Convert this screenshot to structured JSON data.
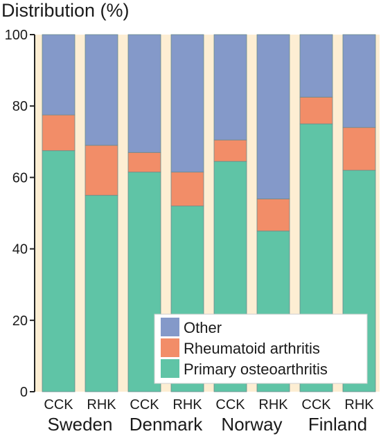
{
  "chart_data": {
    "type": "bar",
    "stacked": true,
    "title": "",
    "ylabel": "Distribution (%)",
    "ylim": [
      0,
      100
    ],
    "yticks": [
      0,
      20,
      40,
      60,
      80,
      100
    ],
    "grid": false,
    "legend_position": "bottom-right",
    "categories": [
      "CCK",
      "RHK",
      "CCK",
      "RHK",
      "CCK",
      "RHK",
      "CCK",
      "RHK"
    ],
    "groups": [
      {
        "label": "Sweden",
        "categories": [
          "CCK",
          "RHK"
        ]
      },
      {
        "label": "Denmark",
        "categories": [
          "CCK",
          "RHK"
        ]
      },
      {
        "label": "Norway",
        "categories": [
          "CCK",
          "RHK"
        ]
      },
      {
        "label": "Finland",
        "categories": [
          "CCK",
          "RHK"
        ]
      }
    ],
    "series": [
      {
        "name": "Primary osteoarthritis",
        "color": "#5fc4a6",
        "values": [
          67.5,
          55,
          61.5,
          52,
          64.5,
          45,
          75,
          62
        ]
      },
      {
        "name": "Rheumatoid arthritis",
        "color": "#f28d68",
        "values": [
          10,
          14,
          5.5,
          9.5,
          6,
          9,
          7.5,
          12
        ]
      },
      {
        "name": "Other",
        "color": "#8499c9",
        "values": [
          22.5,
          31,
          33,
          38.5,
          29.5,
          46,
          17.5,
          26
        ]
      }
    ],
    "legend_order": [
      "Other",
      "Rheumatoid arthritis",
      "Primary osteoarthritis"
    ],
    "colors": {
      "plot_background": "#fdeed3",
      "axis": "#222222"
    }
  }
}
